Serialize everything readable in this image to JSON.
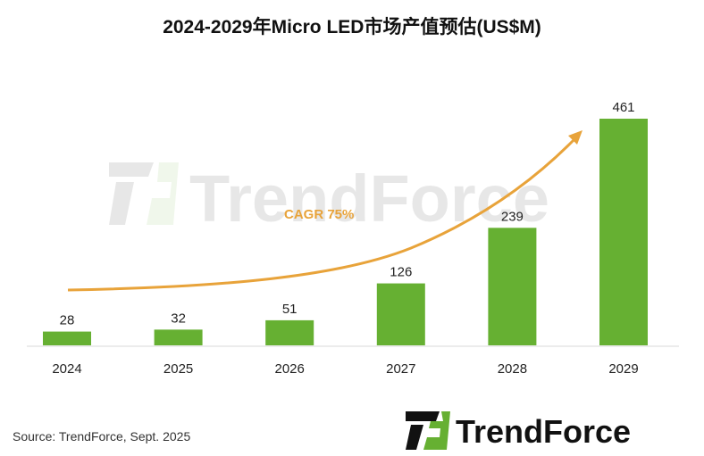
{
  "chart_data": {
    "type": "bar",
    "title": "2024-2029年Micro LED市场产值预估(US$M)",
    "categories": [
      "2024",
      "2025",
      "2026",
      "2027",
      "2028",
      "2029"
    ],
    "values": [
      28,
      32,
      51,
      126,
      239,
      461
    ],
    "data_labels": [
      "28",
      "32",
      "51",
      "126",
      "239",
      "461"
    ],
    "xlabel": "",
    "ylabel": "",
    "ylim": [
      0,
      461
    ],
    "grid": false,
    "annotation": "CAGR 75%",
    "bar_color": "#66B032",
    "arrow_color": "#E8A33A"
  },
  "source": "Source: TrendForce, Sept. 2025",
  "logo_text": "TrendForce",
  "watermark_text": "TrendForce"
}
